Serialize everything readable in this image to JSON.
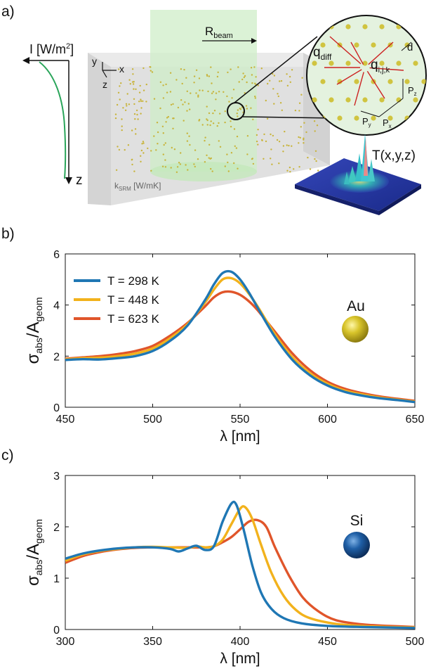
{
  "panel_a": {
    "label": "a)",
    "intensity_label": "I [W/m",
    "intensity_sup": "2",
    "intensity_close": "]",
    "z_label": "z",
    "axis_y": "y",
    "axis_x": "x",
    "axis_z": "z",
    "beam_label": "R",
    "beam_sub": "beam",
    "k_label": "k",
    "k_sub": "SRM",
    "k_unit": " [W/mK]",
    "temp_label": "T(x,y,z)",
    "inset": {
      "q_diff": "q",
      "q_diff_sub": "diff",
      "q_ijk": "q",
      "q_ijk_sub": "i,j,k",
      "d": "d",
      "pz": "P",
      "pz_sub": "z",
      "px": "P",
      "px_sub": "x",
      "py": "P",
      "py_sub": "y"
    },
    "colors": {
      "particle": "#c8b43c",
      "beam": "#cfeec8",
      "box": "#d9d9d9",
      "intensity_curve": "#2aa55a",
      "arrows": "#cc2222"
    }
  },
  "chart_data": [
    {
      "type": "line",
      "label": "b)",
      "xlim": [
        450,
        650
      ],
      "ylim": [
        0,
        6
      ],
      "xticks": [
        450,
        500,
        550,
        600,
        650
      ],
      "yticks": [
        0,
        2,
        4,
        6
      ],
      "xlabel": "λ [nm]",
      "ylabel_main": "σ",
      "ylabel_sub1": "abs",
      "ylabel_slash": "/A",
      "ylabel_sub2": "geom",
      "material": "Au",
      "legend_position": "top-left",
      "grid": false,
      "series": [
        {
          "name": "T = 298 K",
          "color": "#1f77b4",
          "x": [
            450,
            460,
            470,
            480,
            490,
            500,
            510,
            520,
            530,
            535,
            540,
            545,
            550,
            555,
            560,
            570,
            580,
            590,
            600,
            610,
            620,
            630,
            640,
            650
          ],
          "y": [
            1.85,
            1.88,
            1.87,
            1.92,
            2.0,
            2.2,
            2.6,
            3.2,
            4.2,
            4.8,
            5.25,
            5.3,
            5.0,
            4.5,
            3.9,
            2.75,
            1.85,
            1.25,
            0.85,
            0.6,
            0.45,
            0.35,
            0.28,
            0.2
          ]
        },
        {
          "name": "T = 448 K",
          "color": "#f2b21c",
          "x": [
            450,
            460,
            470,
            480,
            490,
            500,
            510,
            520,
            530,
            535,
            540,
            545,
            550,
            555,
            560,
            570,
            580,
            590,
            600,
            610,
            620,
            630,
            640,
            650
          ],
          "y": [
            1.88,
            1.92,
            1.94,
            2.0,
            2.1,
            2.3,
            2.7,
            3.25,
            4.1,
            4.6,
            5.0,
            5.05,
            4.85,
            4.45,
            3.95,
            2.85,
            1.95,
            1.33,
            0.92,
            0.65,
            0.5,
            0.38,
            0.3,
            0.22
          ]
        },
        {
          "name": "T = 623 K",
          "color": "#e0552a",
          "x": [
            450,
            460,
            470,
            480,
            490,
            500,
            510,
            520,
            530,
            535,
            540,
            545,
            550,
            555,
            560,
            570,
            580,
            590,
            600,
            610,
            620,
            630,
            640,
            650
          ],
          "y": [
            1.9,
            1.95,
            2.0,
            2.08,
            2.2,
            2.4,
            2.8,
            3.3,
            3.95,
            4.3,
            4.5,
            4.52,
            4.4,
            4.15,
            3.8,
            2.95,
            2.1,
            1.45,
            1.0,
            0.72,
            0.55,
            0.42,
            0.33,
            0.25
          ]
        }
      ]
    },
    {
      "type": "line",
      "label": "c)",
      "xlim": [
        300,
        500
      ],
      "ylim": [
        0,
        3
      ],
      "xticks": [
        300,
        350,
        400,
        450,
        500
      ],
      "yticks": [
        0,
        1,
        2,
        3
      ],
      "xlabel": "λ [nm]",
      "ylabel_main": "σ",
      "ylabel_sub1": "abs",
      "ylabel_slash": "/A",
      "ylabel_sub2": "geom",
      "material": "Si",
      "grid": false,
      "series": [
        {
          "name": "T = 298 K",
          "color": "#1f77b4",
          "x": [
            300,
            310,
            320,
            330,
            340,
            350,
            360,
            365,
            370,
            375,
            380,
            385,
            390,
            395,
            398,
            402,
            407,
            412,
            418,
            425,
            435,
            450,
            470,
            500
          ],
          "y": [
            1.38,
            1.48,
            1.54,
            1.58,
            1.6,
            1.6,
            1.57,
            1.52,
            1.58,
            1.63,
            1.55,
            1.62,
            2.1,
            2.45,
            2.42,
            1.95,
            1.25,
            0.72,
            0.4,
            0.22,
            0.12,
            0.07,
            0.05,
            0.03
          ]
        },
        {
          "name": "T = 448 K",
          "color": "#f2b21c",
          "x": [
            300,
            310,
            320,
            330,
            340,
            350,
            360,
            370,
            375,
            380,
            385,
            390,
            395,
            400,
            403,
            407,
            412,
            418,
            425,
            432,
            440,
            455,
            475,
            500
          ],
          "y": [
            1.34,
            1.46,
            1.53,
            1.57,
            1.6,
            1.61,
            1.6,
            1.59,
            1.62,
            1.6,
            1.62,
            1.75,
            2.05,
            2.35,
            2.38,
            2.15,
            1.65,
            1.1,
            0.65,
            0.38,
            0.22,
            0.11,
            0.06,
            0.04
          ]
        },
        {
          "name": "T = 623 K",
          "color": "#e0552a",
          "x": [
            300,
            310,
            320,
            330,
            340,
            350,
            360,
            370,
            380,
            385,
            390,
            395,
            400,
            405,
            410,
            415,
            420,
            428,
            436,
            445,
            455,
            470,
            485,
            500
          ],
          "y": [
            1.3,
            1.43,
            1.51,
            1.56,
            1.59,
            1.6,
            1.6,
            1.6,
            1.6,
            1.62,
            1.7,
            1.8,
            1.95,
            2.1,
            2.13,
            2.0,
            1.6,
            1.05,
            0.62,
            0.35,
            0.18,
            0.1,
            0.07,
            0.05
          ]
        }
      ]
    }
  ]
}
